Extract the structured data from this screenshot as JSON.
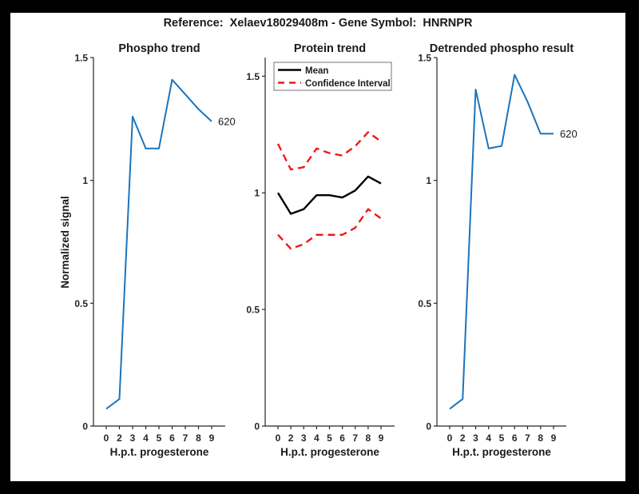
{
  "frame": {
    "bg": "#000000",
    "panel_bg": "#FFFFFF"
  },
  "figure_title": "Reference:  Xelaev18029408m - Gene Symbol:  HNRNPR",
  "colors": {
    "blue": "#1B74BE",
    "red": "#F01914",
    "black": "#000000",
    "axis": "#262626",
    "text": "#1A1A1A",
    "legend_border": "#737373"
  },
  "chart_data": [
    {
      "type": "line",
      "title": "Phospho trend",
      "xlabel": "H.p.t. progesterone",
      "ylabel": "Normalized signal",
      "categories": [
        "0",
        "2",
        "3",
        "4",
        "5",
        "6",
        "7",
        "8",
        "9"
      ],
      "ytick_labels": [
        "0",
        "0.5",
        "1",
        "1.5"
      ],
      "ytick_values": [
        0,
        0.5,
        1,
        1.5
      ],
      "ylim": [
        0,
        1.5
      ],
      "grid": false,
      "end_label": "620",
      "legend": null,
      "series": [
        {
          "name": "phospho-signal",
          "label": "620",
          "color": "blue",
          "style": "solid",
          "width": 2,
          "values": [
            0.07,
            0.11,
            1.26,
            1.13,
            1.13,
            1.41,
            1.35,
            1.29,
            1.24
          ]
        }
      ]
    },
    {
      "type": "line",
      "title": "Protein trend",
      "xlabel": "H.p.t. progesterone",
      "ylabel": "",
      "categories": [
        "0",
        "2",
        "3",
        "4",
        "5",
        "6",
        "7",
        "8",
        "9"
      ],
      "ytick_labels": [
        "0",
        "0.5",
        "1",
        "1.5"
      ],
      "ytick_values": [
        0,
        0.5,
        1,
        1.5
      ],
      "ylim": [
        0,
        1.58
      ],
      "grid": false,
      "end_label": null,
      "legend": {
        "position": "top-left",
        "entries": [
          {
            "label": "Mean",
            "color": "black",
            "style": "solid"
          },
          {
            "label": "Confidence Interval",
            "color": "red",
            "style": "dashed"
          }
        ]
      },
      "series": [
        {
          "name": "mean",
          "label": "Mean",
          "color": "black",
          "style": "solid",
          "width": 2.4,
          "values": [
            1.0,
            0.91,
            0.93,
            0.99,
            0.99,
            0.98,
            1.01,
            1.07,
            1.04
          ]
        },
        {
          "name": "ci-upper",
          "label": "Confidence Interval",
          "color": "red",
          "style": "dashed",
          "width": 2.4,
          "values": [
            1.21,
            1.1,
            1.11,
            1.19,
            1.17,
            1.16,
            1.2,
            1.26,
            1.22
          ]
        },
        {
          "name": "ci-lower",
          "label": "Confidence Interval",
          "color": "red",
          "style": "dashed",
          "width": 2.4,
          "values": [
            0.82,
            0.76,
            0.78,
            0.82,
            0.82,
            0.82,
            0.85,
            0.93,
            0.89
          ]
        }
      ]
    },
    {
      "type": "line",
      "title": "Detrended phospho result",
      "xlabel": "H.p.t. progesterone",
      "ylabel": "",
      "categories": [
        "0",
        "2",
        "3",
        "4",
        "5",
        "6",
        "7",
        "8",
        "9"
      ],
      "ytick_labels": [
        "0",
        "0.5",
        "1",
        "1.5"
      ],
      "ytick_values": [
        0,
        0.5,
        1,
        1.5
      ],
      "ylim": [
        0,
        1.5
      ],
      "grid": false,
      "end_label": "620",
      "legend": null,
      "series": [
        {
          "name": "detrended-signal",
          "label": "620",
          "color": "blue",
          "style": "solid",
          "width": 2,
          "values": [
            0.07,
            0.11,
            1.37,
            1.13,
            1.14,
            1.43,
            1.32,
            1.19,
            1.19
          ]
        }
      ]
    }
  ]
}
